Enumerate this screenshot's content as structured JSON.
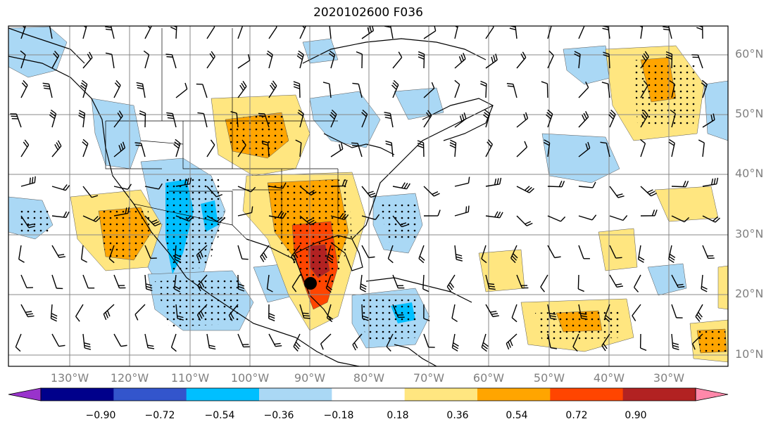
{
  "title": "2020102600 F036",
  "lat_labels": [
    "60°N",
    "50°N",
    "40°N",
    "30°N",
    "20°N",
    "10°N"
  ],
  "lon_labels": [
    "130°W",
    "120°W",
    "110°W",
    "100°W",
    "90°W",
    "80°W",
    "70°W",
    "60°W",
    "50°W",
    "40°W",
    "30°W"
  ],
  "colorbar": {
    "ticks": [
      "−0.90",
      "−0.72",
      "−0.54",
      "−0.36",
      "−0.18",
      "0.18",
      "0.36",
      "0.54",
      "0.72",
      "0.90"
    ],
    "colors": [
      "#9933cc",
      "#00008b",
      "#3355cc",
      "#00bfff",
      "#aad8f5",
      "#ffffff",
      "#ffe680",
      "#ffa500",
      "#ff4500",
      "#b22222",
      "#ff88aa"
    ]
  },
  "storm_marker": "storm-center-dot"
}
